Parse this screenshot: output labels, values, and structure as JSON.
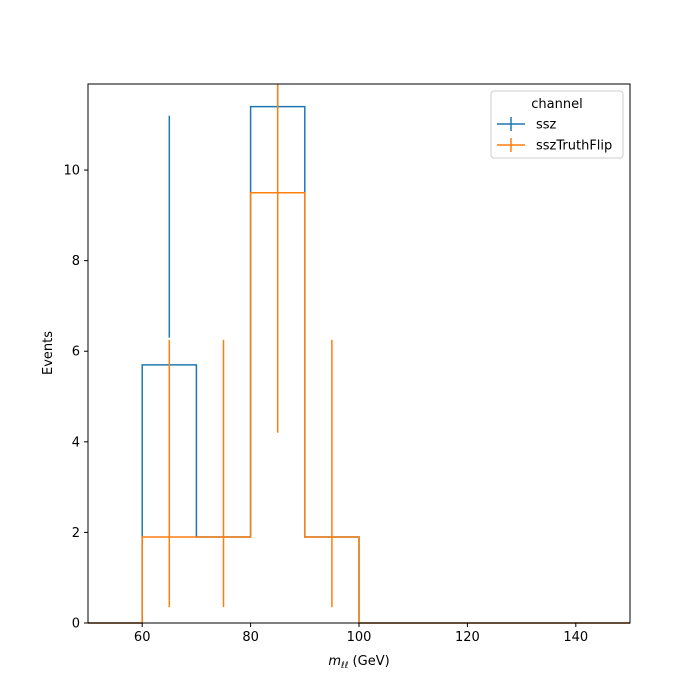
{
  "chart_data": {
    "type": "step",
    "xlabel_main": "m",
    "xlabel_sub": "ℓℓ",
    "xlabel_unit": " (GeV)",
    "ylabel": "Events",
    "xlim": [
      50,
      150
    ],
    "ylim": [
      0,
      11.9
    ],
    "xticks": [
      60,
      80,
      100,
      120,
      140
    ],
    "yticks": [
      0,
      2,
      4,
      6,
      8,
      10
    ],
    "grid": false,
    "legend": {
      "title": "channel",
      "placement": "top-right"
    },
    "bin_edges": [
      50,
      60,
      70,
      80,
      90,
      100,
      110,
      120,
      130,
      140,
      150
    ],
    "bin_centers": [
      55,
      65,
      75,
      85,
      95,
      105,
      115,
      125,
      135,
      145
    ],
    "series": [
      {
        "name": "ssz",
        "color": "#1f77b4",
        "values": [
          0,
          5.7,
          1.9,
          11.4,
          1.9,
          0,
          0,
          0,
          0,
          0
        ],
        "err_low": [
          0,
          6.3,
          0,
          11.4,
          0,
          0,
          0,
          0,
          0,
          0
        ],
        "err_high": [
          0,
          11.2,
          0,
          11.9,
          0,
          0,
          0,
          0,
          0,
          0
        ]
      },
      {
        "name": "sszTruthFlip",
        "color": "#ff7f0e",
        "values": [
          0,
          1.9,
          1.9,
          9.5,
          1.9,
          0,
          0,
          0,
          0,
          0
        ],
        "err_low": [
          0,
          0.35,
          0.35,
          4.2,
          0.35,
          0,
          0,
          0,
          0,
          0
        ],
        "err_high": [
          0,
          6.25,
          6.25,
          11.9,
          6.25,
          0,
          0,
          0,
          0,
          0
        ]
      }
    ]
  }
}
